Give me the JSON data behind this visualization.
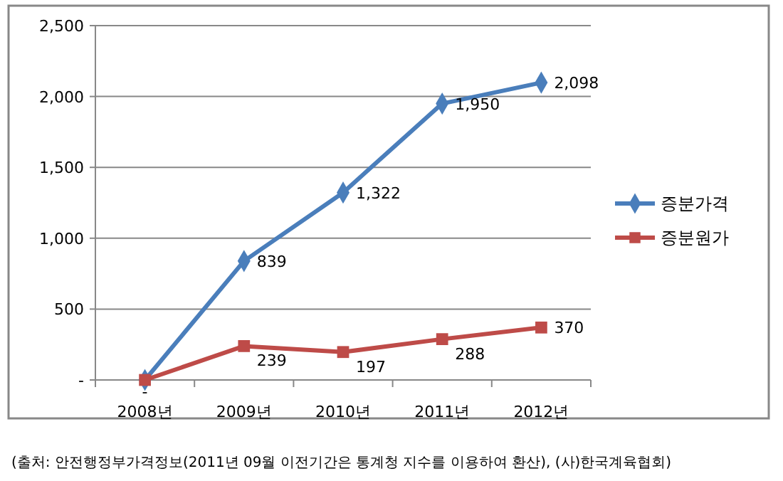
{
  "chart_data": {
    "type": "line",
    "categories": [
      "2008년",
      "2009년",
      "2010년",
      "2011년",
      "2012년"
    ],
    "series": [
      {
        "name": "증분가격",
        "color": "#4a7ebb",
        "marker": "diamond",
        "values": [
          0,
          839,
          1322,
          1950,
          2098
        ],
        "value_labels": [
          null,
          "839",
          "1,322",
          "1,950",
          "2,098"
        ]
      },
      {
        "name": "증분원가",
        "color": "#be4b48",
        "marker": "square",
        "values": [
          0,
          239,
          197,
          288,
          370
        ],
        "value_labels": [
          "-",
          "239",
          "197",
          "288",
          "370"
        ]
      }
    ],
    "ylim": [
      0,
      2500
    ],
    "yticks": [
      {
        "value": 0,
        "label": "-"
      },
      {
        "value": 500,
        "label": "500"
      },
      {
        "value": 1000,
        "label": "1,000"
      },
      {
        "value": 1500,
        "label": "1,500"
      },
      {
        "value": 2000,
        "label": "2,000"
      },
      {
        "value": 2500,
        "label": "2,500"
      }
    ],
    "grid": "y",
    "legend": "right",
    "annotations": [
      "(출처: 안전행정부가격정보(2011년 09월 이전기간은 통계청 지수를 이용하여 환산), (사)한국계육협회)"
    ]
  }
}
